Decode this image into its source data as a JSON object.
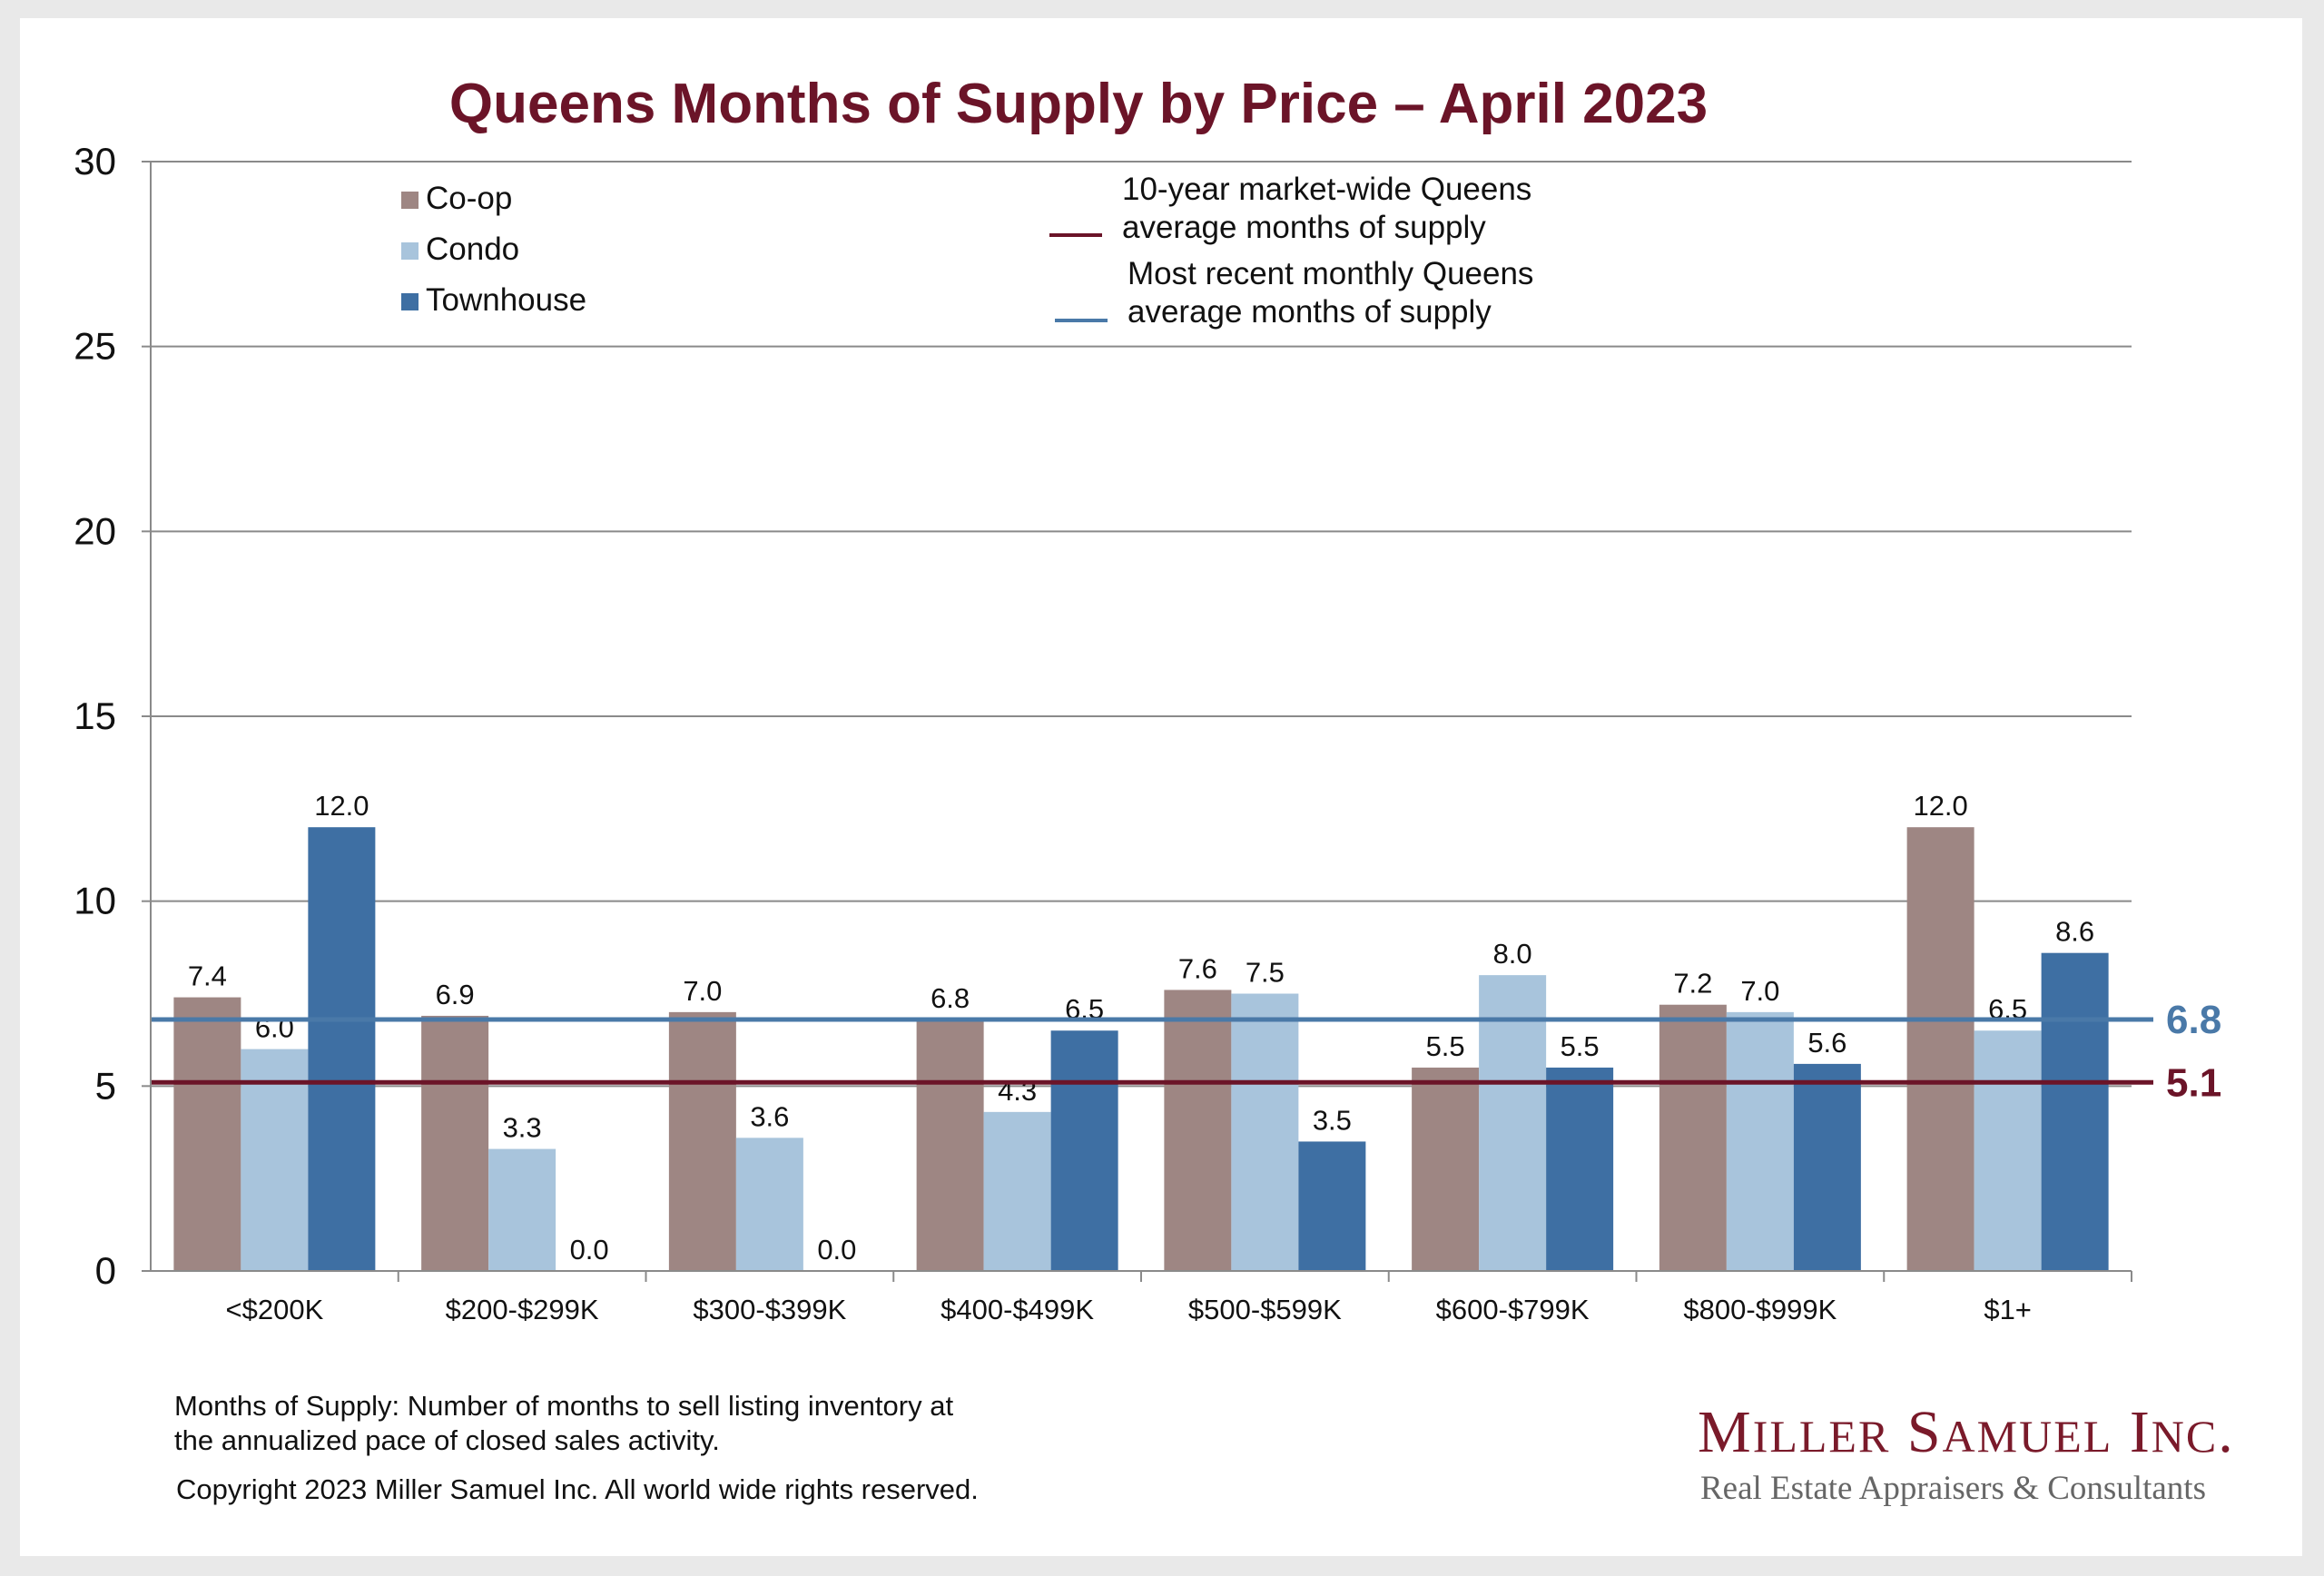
{
  "chart_data": {
    "type": "bar",
    "title": "Queens Months of Supply by Price – April 2023",
    "categories": [
      "<$200K",
      "$200-$299K",
      "$300-$399K",
      "$400-$499K",
      "$500-$599K",
      "$600-$799K",
      "$800-$999K",
      "$1+"
    ],
    "series": [
      {
        "name": "Co-op",
        "color": "#9e8683",
        "values": [
          7.4,
          6.9,
          7.0,
          6.8,
          7.6,
          5.5,
          7.2,
          12.0
        ]
      },
      {
        "name": "Condo",
        "color": "#a8c4dc",
        "values": [
          6.0,
          3.3,
          3.6,
          4.3,
          7.5,
          8.0,
          7.0,
          6.5
        ]
      },
      {
        "name": "Townhouse",
        "color": "#3e6fa3",
        "values": [
          12.0,
          0.0,
          0.0,
          6.5,
          3.5,
          5.5,
          5.6,
          8.6
        ]
      }
    ],
    "reference_lines": [
      {
        "name": "10-year market-wide Queens average months of supply",
        "legend_lines": [
          "10-year market-wide Queens",
          "average months of supply"
        ],
        "value": 5.1,
        "label": "5.1",
        "color": "#6b1428"
      },
      {
        "name": "Most recent monthly Queens average months of supply",
        "legend_lines": [
          "Most recent monthly Queens",
          "average months of supply"
        ],
        "value": 6.8,
        "label": "6.8",
        "color": "#4a79a8"
      }
    ],
    "yticks": [
      "0",
      "5",
      "10",
      "15",
      "20",
      "25",
      "30"
    ],
    "ylim": [
      0,
      30
    ],
    "grid": true,
    "legend_position": "top-left"
  },
  "footnote": {
    "line1": "Months of Supply: Number of months to sell listing inventory at",
    "line2": "the annualized pace of closed sales activity.",
    "copyright": "Copyright 2023 Miller Samuel Inc.  All world wide rights reserved."
  },
  "logo": {
    "name": "Miller Samuel Inc.",
    "tagline": "Real Estate Appraisers & Consultants"
  }
}
